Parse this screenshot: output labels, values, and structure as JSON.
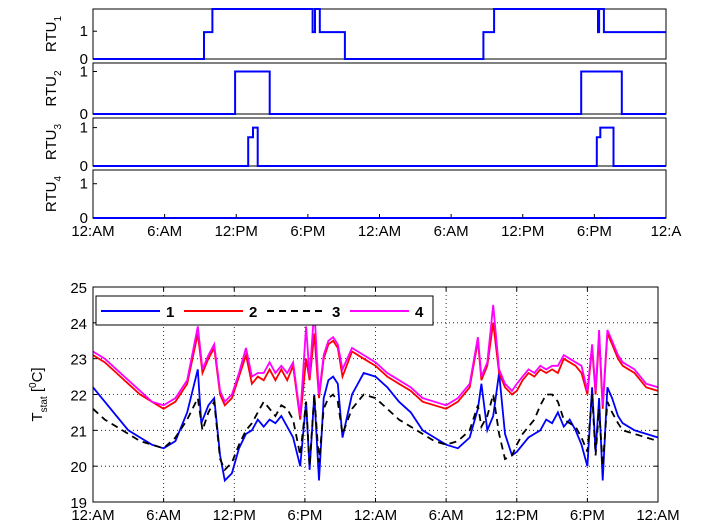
{
  "chart_data": [
    {
      "type": "line",
      "panels": [
        {
          "name": "RTU1",
          "label": "RTU",
          "sub": "1",
          "ylim": [
            0,
            1.8
          ],
          "yticks": [
            "0",
            "1"
          ],
          "x": [
            0,
            9.3,
            9.3,
            10.0,
            10.0,
            10.6,
            10.6,
            18.4,
            18.4,
            18.6,
            18.6,
            19.0,
            19.0,
            19.4,
            19.4,
            21.1,
            21.1,
            32.7,
            32.7,
            33.6,
            33.6,
            34.2,
            34.2,
            42.3,
            42.3,
            42.4,
            42.4,
            42.8,
            42.8,
            43.2,
            43.2,
            48
          ],
          "y": [
            0,
            0,
            0.97,
            0.97,
            1.8,
            1.8,
            1.8,
            1.8,
            0.97,
            0.97,
            1.8,
            1.8,
            0.97,
            0.97,
            0.97,
            0.97,
            0,
            0,
            0.97,
            0.97,
            1.8,
            1.8,
            1.8,
            1.8,
            0.97,
            0.97,
            1.8,
            1.8,
            0.97,
            0.97,
            0.97,
            0.97
          ]
        },
        {
          "name": "RTU2",
          "label": "RTU",
          "sub": "2",
          "ylim": [
            0,
            1.2
          ],
          "yticks": [
            "0",
            "1"
          ],
          "x": [
            0,
            11.9,
            11.9,
            14.8,
            14.8,
            40.9,
            40.9,
            44.3,
            44.3,
            48
          ],
          "y": [
            0,
            0,
            1,
            1,
            0,
            0,
            1,
            1,
            0,
            0
          ]
        },
        {
          "name": "RTU3",
          "label": "RTU",
          "sub": "3",
          "ylim": [
            0,
            1.25
          ],
          "yticks": [
            "0",
            "1"
          ],
          "x": [
            0,
            13.0,
            13.0,
            13.4,
            13.4,
            13.8,
            13.8,
            42.2,
            42.2,
            42.5,
            42.5,
            43.6,
            43.6,
            48
          ],
          "y": [
            0,
            0,
            0.75,
            0.75,
            1,
            1,
            0,
            0,
            0.75,
            0.75,
            1,
            1,
            0,
            0
          ]
        },
        {
          "name": "RTU4",
          "label": "RTU",
          "sub": "4",
          "ylim": [
            0,
            1.4
          ],
          "yticks": [
            "0",
            "1"
          ],
          "x": [
            0,
            48
          ],
          "y": [
            0,
            0
          ]
        }
      ],
      "xticks": [
        "12:AM",
        "6:AM",
        "12:PM",
        "6:PM",
        "12:AM",
        "6:AM",
        "12:PM",
        "6:PM",
        "12:A"
      ],
      "xtick_values": [
        0,
        6,
        12,
        18,
        24,
        30,
        36,
        42,
        48
      ]
    },
    {
      "type": "line",
      "ylabel": "T",
      "ylabel_sub": "stat",
      "ylabel_unit": " [",
      "ylabel_sup": "0",
      "ylabel_tail": "C]",
      "ylim": [
        19,
        25
      ],
      "yticks": [
        "19",
        "20",
        "21",
        "22",
        "23",
        "24",
        "25"
      ],
      "xticks": [
        "12:AM",
        "6:AM",
        "12:PM",
        "6:PM",
        "12:AM",
        "6:AM",
        "12:PM",
        "6:PM",
        "12:AM"
      ],
      "xtick_values": [
        0,
        6,
        12,
        18,
        24,
        30,
        36,
        42,
        48
      ],
      "grid": true,
      "legend_position": "top-left",
      "series": [
        {
          "name": "1",
          "color": "#0000ff",
          "dash": "",
          "x": [
            0,
            1,
            2,
            3,
            4,
            5,
            6,
            7,
            8,
            8.9,
            9.2,
            9.8,
            10.3,
            10.8,
            11.2,
            11.8,
            12.4,
            13,
            13.5,
            14,
            14.5,
            15,
            15.5,
            16,
            16.5,
            17,
            17.6,
            18.1,
            18.4,
            18.8,
            19.2,
            19.6,
            20.0,
            20.4,
            20.8,
            21.2,
            22,
            23,
            24,
            25,
            26,
            27,
            28,
            29,
            30,
            31,
            32,
            32.7,
            33.0,
            33.5,
            34.0,
            34.5,
            35.0,
            35.6,
            36.0,
            36.5,
            37,
            37.5,
            38,
            38.5,
            39,
            39.5,
            40,
            40.5,
            41,
            41.5,
            42,
            42.4,
            42.7,
            43.0,
            43.3,
            43.7,
            44.1,
            44.6,
            45,
            46,
            47,
            48
          ],
          "y": [
            22.2,
            21.8,
            21.4,
            21.0,
            20.8,
            20.6,
            20.5,
            20.7,
            21.5,
            22.7,
            21.2,
            21.7,
            21.9,
            20.3,
            19.6,
            19.8,
            20.5,
            20.9,
            21.0,
            21.3,
            21.1,
            21.3,
            21.2,
            21.4,
            21.1,
            20.8,
            20.0,
            21.8,
            19.9,
            22.0,
            19.6,
            21.9,
            22.4,
            22.5,
            22.3,
            20.8,
            22.0,
            22.6,
            22.5,
            22.2,
            21.8,
            21.5,
            21.0,
            20.8,
            20.6,
            20.5,
            20.8,
            21.6,
            22.3,
            21.0,
            21.4,
            22.6,
            20.9,
            20.3,
            20.4,
            20.6,
            20.8,
            20.9,
            21.0,
            21.3,
            21.2,
            21.5,
            21.1,
            21.3,
            21.0,
            20.6,
            20.0,
            22.2,
            20.4,
            21.9,
            19.6,
            22.2,
            21.9,
            21.4,
            21.2,
            21.0,
            20.9,
            20.8
          ]
        },
        {
          "name": "2",
          "color": "#ff0000",
          "dash": "",
          "x": [
            0,
            1,
            2,
            3,
            4,
            5,
            6,
            7,
            8,
            8.9,
            9.3,
            9.8,
            10.3,
            10.8,
            11.2,
            11.8,
            12.4,
            13,
            13.5,
            14,
            14.5,
            15,
            15.5,
            16,
            16.5,
            17,
            17.6,
            18.1,
            18.4,
            18.8,
            19.2,
            19.6,
            20.0,
            20.4,
            20.8,
            21.2,
            22,
            23,
            24,
            25,
            26,
            27,
            28,
            29,
            30,
            31,
            32,
            32.7,
            33.0,
            33.5,
            34.0,
            34.5,
            35.0,
            35.6,
            36.0,
            36.5,
            37,
            37.5,
            38,
            38.5,
            39,
            39.5,
            40,
            40.5,
            41,
            41.5,
            42,
            42.4,
            42.7,
            43.0,
            43.3,
            43.7,
            44.1,
            44.6,
            45,
            46,
            47,
            48
          ],
          "y": [
            23.1,
            22.9,
            22.6,
            22.3,
            22.0,
            21.8,
            21.6,
            21.8,
            22.3,
            23.7,
            22.6,
            23.0,
            23.3,
            22.0,
            21.7,
            21.9,
            22.5,
            23.1,
            22.3,
            22.5,
            22.4,
            22.7,
            22.4,
            22.7,
            22.4,
            22.8,
            21.3,
            23.0,
            22.4,
            23.7,
            21.9,
            23.0,
            23.4,
            23.5,
            23.3,
            22.5,
            23.2,
            23.0,
            22.8,
            22.5,
            22.3,
            22.1,
            21.8,
            21.7,
            21.6,
            21.8,
            22.2,
            23.5,
            22.4,
            22.8,
            24.0,
            22.6,
            22.2,
            22.0,
            22.1,
            22.4,
            22.6,
            22.5,
            22.7,
            22.6,
            22.7,
            22.6,
            23.0,
            22.9,
            22.8,
            22.6,
            22.0,
            23.3,
            22.0,
            23.6,
            21.6,
            23.7,
            23.4,
            23.0,
            22.8,
            22.6,
            22.2,
            22.1
          ]
        },
        {
          "name": "3",
          "color": "#000000",
          "dash": "7,5",
          "x": [
            0,
            1,
            2,
            3,
            4,
            5,
            6,
            7,
            8,
            8.9,
            9.3,
            9.8,
            10.3,
            10.8,
            11.2,
            11.8,
            12.4,
            13,
            13.5,
            14,
            14.5,
            15,
            15.5,
            16,
            16.5,
            17,
            17.6,
            18.1,
            18.4,
            18.8,
            19.2,
            19.6,
            20.0,
            20.4,
            20.8,
            21.2,
            22,
            23,
            24,
            25,
            26,
            27,
            28,
            29,
            30,
            31,
            32,
            32.7,
            33.0,
            33.5,
            34.0,
            34.5,
            35.0,
            35.6,
            36.0,
            36.5,
            37,
            37.5,
            38,
            38.5,
            39,
            39.5,
            40,
            40.5,
            41,
            41.5,
            42,
            42.4,
            42.7,
            43.0,
            43.3,
            43.7,
            44.1,
            44.6,
            45,
            46,
            47,
            48
          ],
          "y": [
            21.6,
            21.3,
            21.1,
            20.9,
            20.7,
            20.6,
            20.5,
            20.8,
            21.3,
            21.9,
            21.0,
            21.5,
            21.8,
            20.2,
            19.9,
            20.1,
            20.6,
            21.0,
            21.2,
            21.5,
            21.8,
            21.6,
            21.4,
            21.7,
            21.6,
            21.3,
            20.3,
            21.8,
            20.0,
            22.0,
            20.1,
            21.6,
            21.9,
            22.0,
            21.8,
            20.9,
            21.6,
            22.0,
            21.9,
            21.6,
            21.3,
            21.1,
            20.9,
            20.7,
            20.6,
            20.7,
            21.0,
            21.7,
            21.1,
            21.4,
            22.0,
            20.9,
            20.2,
            20.3,
            20.6,
            20.9,
            21.1,
            21.3,
            21.7,
            22.0,
            22.0,
            21.8,
            21.3,
            21.2,
            21.1,
            20.8,
            20.4,
            22.0,
            20.3,
            21.6,
            20.0,
            21.8,
            21.5,
            21.2,
            21.0,
            20.9,
            20.8,
            20.7
          ]
        },
        {
          "name": "4",
          "color": "#ff00ff",
          "dash": "",
          "x": [
            0,
            1,
            2,
            3,
            4,
            5,
            6,
            7,
            8,
            8.9,
            9.3,
            9.8,
            10.3,
            10.8,
            11.2,
            11.8,
            12.4,
            13,
            13.5,
            14,
            14.5,
            15,
            15.5,
            16,
            16.5,
            17,
            17.6,
            18.1,
            18.4,
            18.8,
            19.2,
            19.6,
            20.0,
            20.4,
            20.8,
            21.2,
            22,
            23,
            24,
            25,
            26,
            27,
            28,
            29,
            30,
            31,
            32,
            32.7,
            33.0,
            33.5,
            34.0,
            34.5,
            35.0,
            35.6,
            36.0,
            36.5,
            37,
            37.5,
            38,
            38.5,
            39,
            39.5,
            40,
            40.5,
            41,
            41.5,
            42,
            42.4,
            42.7,
            43.0,
            43.3,
            43.7,
            44.1,
            44.6,
            45,
            46,
            47,
            48
          ],
          "y": [
            23.2,
            23.0,
            22.7,
            22.4,
            22.1,
            21.8,
            21.7,
            21.9,
            22.4,
            23.9,
            22.7,
            23.1,
            23.4,
            22.1,
            21.8,
            22.0,
            22.6,
            23.3,
            22.5,
            22.6,
            22.6,
            22.9,
            22.6,
            22.8,
            22.6,
            22.9,
            21.4,
            23.9,
            22.5,
            24.4,
            22.0,
            23.1,
            23.5,
            23.6,
            23.4,
            22.7,
            23.3,
            23.1,
            22.9,
            22.6,
            22.4,
            22.2,
            21.9,
            21.8,
            21.7,
            21.9,
            22.3,
            23.6,
            22.5,
            22.9,
            24.5,
            22.7,
            22.3,
            22.1,
            22.3,
            22.5,
            22.7,
            22.6,
            22.8,
            22.7,
            22.8,
            22.8,
            23.1,
            23.0,
            22.9,
            22.8,
            22.1,
            23.4,
            22.1,
            23.8,
            21.7,
            23.8,
            23.5,
            23.1,
            22.9,
            22.7,
            22.3,
            22.2
          ]
        }
      ]
    }
  ]
}
